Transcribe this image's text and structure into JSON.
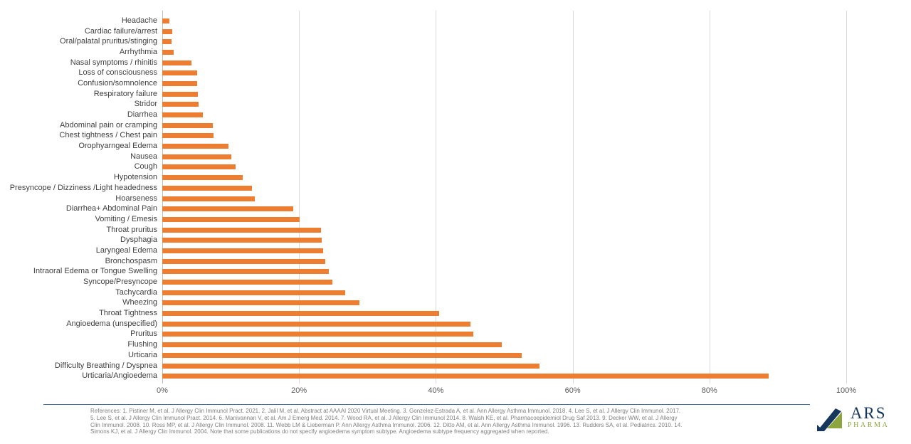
{
  "chart_data": {
    "type": "bar",
    "orientation": "horizontal",
    "categories": [
      "Headache",
      "Cardiac failure/arrest",
      "Oral/palatal pruritus/stinging",
      "Arrhythmia",
      "Nasal symptoms / rhinitis",
      "Loss of consciousness",
      "Confusion/somnolence",
      "Respiratory failure",
      "Stridor",
      "Diarrhea",
      "Abdominal pain or cramping",
      "Chest tightness / Chest pain",
      "Orophyarngeal Edema",
      "Nausea",
      "Cough",
      "Hypotension",
      "Presyncope / Dizziness /Light headedness",
      "Hoarseness",
      "Diarrhea+ Abdominal Pain",
      "Vomiting / Emesis",
      "Throat pruritus",
      "Dysphagia",
      "Laryngeal Edema",
      "Bronchospasm",
      "Intraoral Edema or Tongue Swelling",
      "Syncope/Presyncope",
      "Tachycardia",
      "Wheezing",
      "Throat Tightness",
      "Angioedema (unspecified)",
      "Pruritus",
      "Flushing",
      "Urticaria",
      "Difficulty Breathing / Dyspnea",
      "Urticaria/Angioedema"
    ],
    "values": [
      1.0,
      1.5,
      1.4,
      1.7,
      4.3,
      5.1,
      5.1,
      5.2,
      5.3,
      5.9,
      7.4,
      7.5,
      9.7,
      10.1,
      10.7,
      11.8,
      13.1,
      13.5,
      19.1,
      20.1,
      23.2,
      23.3,
      23.5,
      23.8,
      24.4,
      24.9,
      26.7,
      28.8,
      40.5,
      45.1,
      45.5,
      49.6,
      52.5,
      55.2,
      88.7
    ],
    "value_unit": "%",
    "title": "",
    "xlabel": "",
    "ylabel": "",
    "xlim": [
      0,
      100
    ],
    "x_ticks": [
      "0%",
      "20%",
      "40%",
      "60%",
      "80%",
      "100%"
    ],
    "grid": true,
    "legend": false,
    "bar_color": "#ED7D31"
  },
  "colors": {
    "bar": "#ED7D31",
    "gridline": "#d9d9d9",
    "axis_line": "#bfbfbf",
    "category_label": "#404040",
    "tick_label": "#595959",
    "divider": "#4a6d9b",
    "references_text": "#808080",
    "logo_navy": "#16365c",
    "logo_green": "#8da53e"
  },
  "footer": {
    "references_lines": [
      "References: 1. Pistiner M, et al. J Allergy Clin Immunol Pract. 2021. 2. Jalil M, et al. Abstract at AAAAI 2020 Virtual Meeting. 3. Gonzelez-Estrada A, et al. Ann Allergy Asthma Immunol. 2018. 4. Lee S, et al. J Allergy Clin Immunol. 2017.",
      "5. Lee S, et al. J Allergy Clin Immunol Pract. 2014. 6. Manivannan V, et al. Am J Emerg Med. 2014. 7. Wood RA, et al. J Allergy Clin Immunol 2014. 8. Walsh KE, et al. Pharmacoepidemiol Drug Saf 2013. 9. Decker WW, et al. J Allergy",
      "Clin Immunol. 2008. 10. Ross MP, et al. J Allergy Clin Immunol. 2008. 11. Webb LM & Lieberman P. Ann Allergy Asthma Immunol. 2006. 12. Ditto AM, et al. Ann Allergy Asthma Immunol. 1996. 13. Rudders SA, et al. Pediatrics. 2010. 14.",
      "Simons KJ, et al. J Allergy Clin Immunol. 2004. Note that some publications do not specify angioedema symptom subtype. Angioedema subtype frequency aggregated when reported."
    ]
  },
  "logo": {
    "name": "ARS",
    "sub": "PHARMA"
  }
}
